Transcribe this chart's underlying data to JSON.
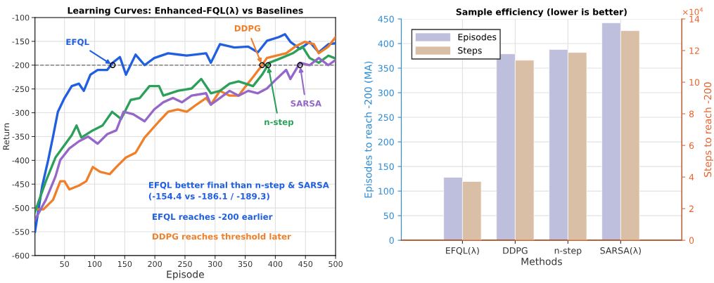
{
  "chart_data": [
    {
      "type": "line",
      "title": "Learning Curves: Enhanced-FQL(λ) vs Baselines",
      "xlabel": "Episode",
      "ylabel": "Return",
      "xlim": [
        1,
        500
      ],
      "ylim": [
        -600,
        -100
      ],
      "xticks": [
        50,
        100,
        150,
        200,
        250,
        300,
        350,
        400,
        450,
        500
      ],
      "yticks": [
        -600,
        -550,
        -500,
        -450,
        -400,
        -350,
        -300,
        -250,
        -200,
        -150,
        -100
      ],
      "grid": true,
      "legend": false,
      "series": [
        {
          "name": "EFQL",
          "color": "#1f5fe0",
          "x": [
            1,
            13,
            23,
            31,
            39,
            50,
            62,
            74,
            82,
            93,
            105,
            121,
            130,
            142,
            152,
            168,
            183,
            199,
            222,
            253,
            285,
            293,
            308,
            332,
            355,
            371,
            386,
            406,
            416,
            425,
            441,
            457,
            472,
            488,
            500
          ],
          "values": [
            -550,
            -454,
            -399,
            -350,
            -298,
            -269,
            -244,
            -239,
            -254,
            -220,
            -210,
            -210,
            -195,
            -183,
            -220,
            -178,
            -200,
            -185,
            -175,
            -180,
            -175,
            -195,
            -156,
            -163,
            -161,
            -173,
            -149,
            -141,
            -135,
            -151,
            -166,
            -151,
            -173,
            -156,
            -154
          ]
        },
        {
          "name": "DDPG",
          "color": "#f07f2a",
          "x": [
            1,
            15,
            31,
            43,
            50,
            58,
            74,
            86,
            97,
            109,
            125,
            136,
            152,
            168,
            183,
            207,
            222,
            238,
            253,
            269,
            285,
            293,
            308,
            324,
            339,
            351,
            363,
            375,
            386,
            402,
            418,
            433,
            449,
            464,
            472,
            488,
            500
          ],
          "values": [
            -503,
            -503,
            -483,
            -444,
            -444,
            -461,
            -453,
            -444,
            -414,
            -424,
            -429,
            -414,
            -394,
            -384,
            -352,
            -318,
            -298,
            -293,
            -298,
            -283,
            -269,
            -283,
            -254,
            -264,
            -264,
            -244,
            -225,
            -205,
            -185,
            -180,
            -175,
            -161,
            -151,
            -156,
            -175,
            -161,
            -141
          ]
        },
        {
          "name": "n-step",
          "color": "#2ca05a",
          "x": [
            1,
            19,
            35,
            62,
            70,
            78,
            97,
            113,
            129,
            144,
            160,
            175,
            191,
            207,
            214,
            238,
            261,
            277,
            293,
            308,
            324,
            339,
            363,
            378,
            390,
            410,
            429,
            445,
            457,
            472,
            488,
            500
          ],
          "values": [
            -508,
            -444,
            -394,
            -347,
            -327,
            -352,
            -337,
            -327,
            -298,
            -313,
            -273,
            -269,
            -244,
            -244,
            -264,
            -254,
            -249,
            -229,
            -259,
            -254,
            -239,
            -234,
            -244,
            -220,
            -195,
            -185,
            -175,
            -161,
            -185,
            -195,
            -180,
            -186
          ]
        },
        {
          "name": "SARSA",
          "color": "#9467c8",
          "x": [
            1,
            19,
            35,
            43,
            58,
            74,
            89,
            105,
            121,
            136,
            148,
            164,
            183,
            199,
            214,
            230,
            245,
            261,
            285,
            293,
            308,
            324,
            339,
            355,
            371,
            386,
            402,
            418,
            425,
            441,
            457,
            472,
            488,
            500
          ],
          "values": [
            -525,
            -483,
            -434,
            -399,
            -375,
            -360,
            -350,
            -365,
            -345,
            -337,
            -298,
            -303,
            -318,
            -293,
            -278,
            -269,
            -278,
            -264,
            -259,
            -283,
            -269,
            -254,
            -264,
            -254,
            -259,
            -249,
            -229,
            -210,
            -229,
            -195,
            -200,
            -185,
            -200,
            -189
          ]
        },
        {
          "type": "scatter",
          "color": "#000000",
          "marker": "circle",
          "x": [
            130,
            378,
            388,
            441
          ],
          "values": [
            -200,
            -200,
            -200,
            -200
          ]
        }
      ],
      "ref_lines": [
        {
          "axis": "y",
          "value": -200,
          "color": "#808080",
          "line_style": "dashed"
        }
      ],
      "annotations": [
        "EFQL better final than n-step & SARSA\n(-154.4 vs -186.1 / -189.3)",
        "EFQL reaches -200 earlier",
        "DDPG reaches threshold later"
      ]
    },
    {
      "type": "bar",
      "title": "Sample efficiency (lower is better)",
      "xlabel": "Methods",
      "ylabel": "Episodes to reach -200 (MA)",
      "y2label": "Steps to reach -200",
      "categories": [
        "EFQL(λ)",
        "DDPG",
        "n-step",
        "SARSA(λ)"
      ],
      "series": [
        {
          "name": "Episodes",
          "color": "#bebedd",
          "values": [
            128,
            379,
            388,
            442
          ]
        },
        {
          "name": "Steps",
          "color": "#d9bfa5",
          "axis": "y2",
          "values": [
            3.72,
            11.39,
            11.88,
            13.26
          ]
        }
      ],
      "ylim": [
        0,
        450
      ],
      "yticks": [
        0,
        50,
        100,
        150,
        200,
        250,
        300,
        350,
        400,
        450
      ],
      "y2lim": [
        0,
        14
      ],
      "y2ticks": [
        0,
        2,
        4,
        6,
        8,
        10,
        12,
        14
      ],
      "grid": true,
      "legend": "top left",
      "annotations": [
        "×10$^{4}$"
      ]
    }
  ]
}
